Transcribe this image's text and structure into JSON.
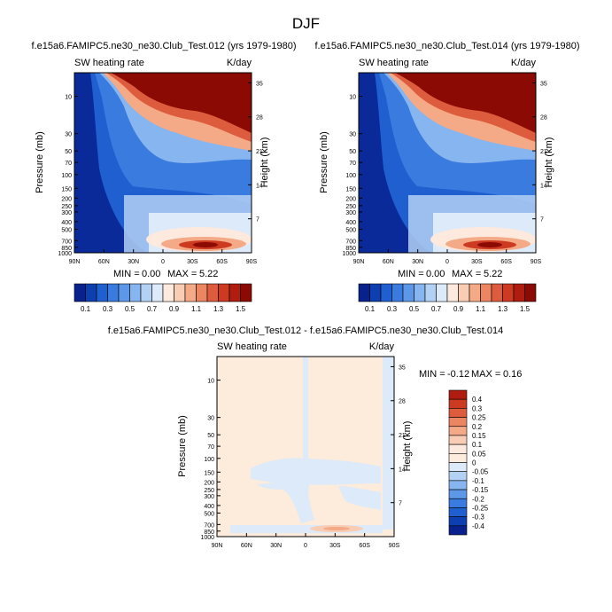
{
  "figure_title": "DJF",
  "chart_data": [
    {
      "type": "heatmap",
      "id": "panel1",
      "title": "f.e15a6.FAMIPC5.ne30_ne30.Club_Test.012 (yrs 1979-1980)",
      "left_label": "SW heating rate",
      "right_label": "K/day",
      "xlabel": "",
      "ylabel": "Pressure (mb)",
      "ylabel_right": "Height (km)",
      "x_ticks": [
        "90N",
        "60N",
        "30N",
        "0",
        "30S",
        "60S",
        "90S"
      ],
      "y_ticks": [
        "10",
        "30",
        "50",
        "70",
        "100",
        "150",
        "200",
        "250",
        "300",
        "400",
        "500",
        "700",
        "850",
        "1000"
      ],
      "y_ticks_right": [
        "35",
        "28",
        "21",
        "14",
        "7"
      ],
      "stats": {
        "min_label": "MIN =",
        "min": "0.00",
        "max_label": "MAX =",
        "max": "5.22"
      },
      "colorbar": {
        "orientation": "horizontal",
        "labels": [
          "0.1",
          "0.3",
          "0.5",
          "0.7",
          "0.9",
          "1.1",
          "1.3",
          "1.5"
        ],
        "colors": [
          "#08218c",
          "#0d3fb0",
          "#1f5fd0",
          "#3a7be0",
          "#5d97e8",
          "#87b5ef",
          "#b3d0f5",
          "#dceafa",
          "#fde9dd",
          "#f9ccb4",
          "#f4a987",
          "#ec8561",
          "#de5c3e",
          "#cc3a22",
          "#b01d10",
          "#8c0a04"
        ]
      },
      "ylim": [
        1000,
        5
      ]
    },
    {
      "type": "heatmap",
      "id": "panel2",
      "title": "f.e15a6.FAMIPC5.ne30_ne30.Club_Test.014 (yrs 1979-1980)",
      "left_label": "SW heating rate",
      "right_label": "K/day",
      "xlabel": "",
      "ylabel": "Pressure (mb)",
      "ylabel_right": "Height (km)",
      "x_ticks": [
        "90N",
        "60N",
        "30N",
        "0",
        "30S",
        "60S",
        "90S"
      ],
      "y_ticks": [
        "10",
        "30",
        "50",
        "70",
        "100",
        "150",
        "200",
        "250",
        "300",
        "400",
        "500",
        "700",
        "850",
        "1000"
      ],
      "y_ticks_right": [
        "35",
        "28",
        "21",
        "14",
        "7"
      ],
      "stats": {
        "min_label": "MIN =",
        "min": "0.00",
        "max_label": "MAX =",
        "max": "5.22"
      },
      "colorbar": {
        "orientation": "horizontal",
        "labels": [
          "0.1",
          "0.3",
          "0.5",
          "0.7",
          "0.9",
          "1.1",
          "1.3",
          "1.5"
        ],
        "colors": [
          "#08218c",
          "#0d3fb0",
          "#1f5fd0",
          "#3a7be0",
          "#5d97e8",
          "#87b5ef",
          "#b3d0f5",
          "#dceafa",
          "#fde9dd",
          "#f9ccb4",
          "#f4a987",
          "#ec8561",
          "#de5c3e",
          "#cc3a22",
          "#b01d10",
          "#8c0a04"
        ]
      },
      "ylim": [
        1000,
        5
      ]
    },
    {
      "type": "heatmap",
      "id": "panel3",
      "title": "f.e15a6.FAMIPC5.ne30_ne30.Club_Test.012 - f.e15a6.FAMIPC5.ne30_ne30.Club_Test.014",
      "left_label": "SW heating rate",
      "right_label": "K/day",
      "xlabel": "",
      "ylabel": "Pressure (mb)",
      "ylabel_right": "Height (km)",
      "x_ticks": [
        "90N",
        "60N",
        "30N",
        "0",
        "30S",
        "60S",
        "90S"
      ],
      "y_ticks": [
        "10",
        "30",
        "50",
        "70",
        "100",
        "150",
        "200",
        "250",
        "300",
        "400",
        "500",
        "700",
        "850",
        "1000"
      ],
      "y_ticks_right": [
        "35",
        "28",
        "21",
        "14",
        "7"
      ],
      "stats": {
        "min_label": "MIN =",
        "min": "-0.12",
        "max_label": "MAX =",
        "max": "0.16"
      },
      "colorbar": {
        "orientation": "vertical",
        "labels": [
          "0.4",
          "0.3",
          "0.25",
          "0.2",
          "0.15",
          "0.1",
          "0.05",
          "0",
          "-0.05",
          "-0.1",
          "-0.15",
          "-0.2",
          "-0.25",
          "-0.3",
          "-0.4"
        ],
        "colors": [
          "#b01d10",
          "#cc3a22",
          "#de5c3e",
          "#ec8561",
          "#f4a987",
          "#f9ccb4",
          "#fde9dd",
          "#fdebdc",
          "#dceafa",
          "#b3d0f5",
          "#87b5ef",
          "#5d97e8",
          "#3a7be0",
          "#1f5fd0",
          "#0d3fb0",
          "#08218c"
        ]
      },
      "ylim": [
        1000,
        5
      ]
    }
  ]
}
